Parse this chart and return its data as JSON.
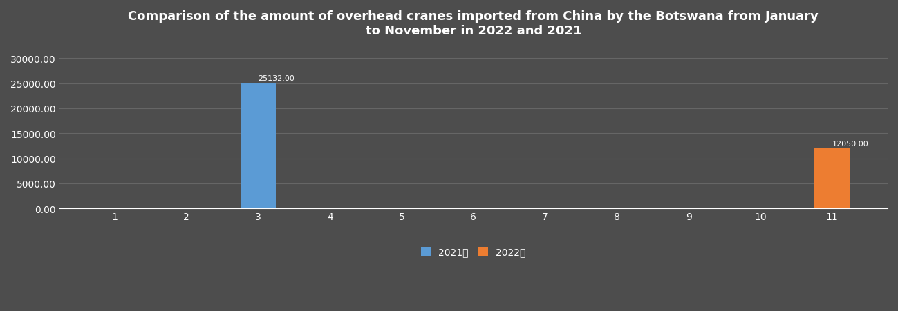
{
  "title": "Comparison of the amount of overhead cranes imported from China by the Botswana from January\nto November in 2022 and 2021",
  "months": [
    1,
    2,
    3,
    4,
    5,
    6,
    7,
    8,
    9,
    10,
    11
  ],
  "data_2021": [
    0,
    0,
    25132,
    0,
    0,
    0,
    0,
    0,
    0,
    0,
    0
  ],
  "data_2022": [
    0,
    0,
    0,
    0,
    0,
    0,
    0,
    0,
    0,
    0,
    12050
  ],
  "label_2021": "2021年",
  "label_2022": "2022年",
  "color_2021": "#5B9BD5",
  "color_2022": "#ED7D31",
  "bg_color": "#4d4d4d",
  "plot_bg_color": "#4d4d4d",
  "text_color": "#ffffff",
  "grid_color": "#666666",
  "ylim": [
    0,
    32000
  ],
  "yticks": [
    0,
    5000,
    10000,
    15000,
    20000,
    25000,
    30000
  ],
  "ytick_labels": [
    "0.00",
    "5000.00",
    "10000.00",
    "15000.00",
    "20000.00",
    "25000.00",
    "30000.00"
  ],
  "bar_width": 0.5,
  "title_fontsize": 13,
  "tick_fontsize": 10,
  "legend_fontsize": 10,
  "annotation_2021_val": "25132.00",
  "annotation_2022_val": "12050.00",
  "annotation_2021_month_idx": 2,
  "annotation_2022_month_idx": 10
}
